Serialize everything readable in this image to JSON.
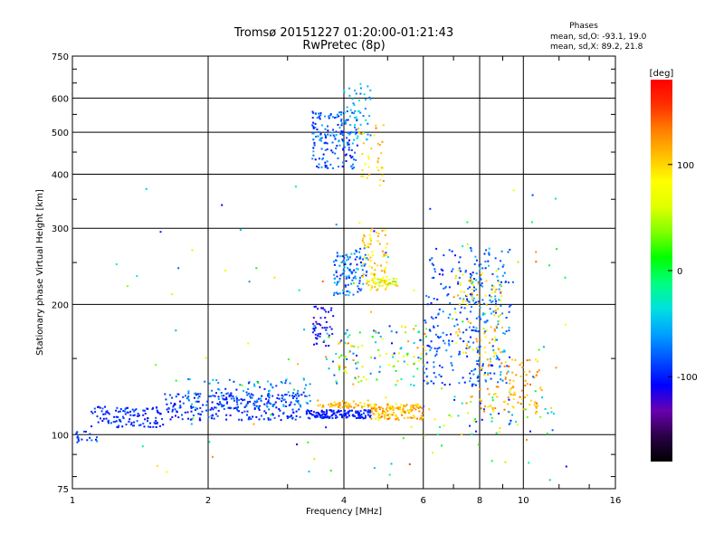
{
  "chart_data": {
    "type": "scatter",
    "title": "Tromsø 20151227 01:20:00-01:21:43",
    "subtitle": "RwPretec (8p)",
    "xlabel": "Frequency [MHz]",
    "ylabel": "Stationary phase Virtual Height [km]",
    "x_scale": "log",
    "y_scale": "log",
    "xlim": [
      1,
      16
    ],
    "ylim": [
      75,
      750
    ],
    "x_ticks": [
      1,
      2,
      4,
      6,
      8,
      10,
      16
    ],
    "y_ticks": [
      75,
      100,
      200,
      300,
      400,
      500,
      600,
      750
    ],
    "x_minor_ticks": [
      3,
      5,
      7,
      9,
      12,
      14
    ],
    "y_minor_ticks": [
      80,
      90,
      150,
      250,
      350,
      450,
      550,
      650,
      700
    ],
    "grid": true,
    "stats": {
      "heading": "Phases",
      "line1": "mean, sd,O: -93.1, 19.0",
      "line2": "mean, sd,X:  89.2, 21.8"
    },
    "colorbar": {
      "unit_label": "[deg]",
      "range": [
        -180,
        180
      ],
      "ticks": [
        100,
        0,
        -100
      ],
      "tick_labels": [
        "100",
        "0",
        "-100"
      ],
      "colors": [
        "#000000",
        "#2a0046",
        "#6a00b0",
        "#0000ff",
        "#0050ff",
        "#00a0ff",
        "#00e0e0",
        "#00ff80",
        "#00ff00",
        "#80ff00",
        "#e0ff00",
        "#ffff00",
        "#ffc000",
        "#ff8000",
        "#ff3000",
        "#ff0000"
      ]
    },
    "clusters": [
      {
        "f": [
          1.0,
          1.15
        ],
        "h": [
          96,
          102
        ],
        "phase": [
          -105,
          -70
        ],
        "n": 20
      },
      {
        "f": [
          1.1,
          1.6
        ],
        "h": [
          104,
          116
        ],
        "phase": [
          -110,
          -80
        ],
        "n": 120
      },
      {
        "f": [
          1.6,
          3.2
        ],
        "h": [
          108,
          125
        ],
        "phase": [
          -115,
          -75
        ],
        "n": 240
      },
      {
        "f": [
          1.8,
          3.4
        ],
        "h": [
          115,
          135
        ],
        "phase": [
          -105,
          -40
        ],
        "n": 110
      },
      {
        "f": [
          3.3,
          4.6
        ],
        "h": [
          109,
          114
        ],
        "phase": [
          -110,
          -90
        ],
        "n": 150
      },
      {
        "f": [
          3.5,
          4.6
        ],
        "h": [
          115,
          120
        ],
        "phase": [
          90,
          130
        ],
        "n": 60
      },
      {
        "f": [
          4.6,
          6.0
        ],
        "h": [
          108,
          118
        ],
        "phase": [
          80,
          140
        ],
        "n": 140
      },
      {
        "f": [
          3.4,
          4.3
        ],
        "h": [
          410,
          560
        ],
        "phase": [
          -110,
          -50
        ],
        "n": 170
      },
      {
        "f": [
          4.0,
          4.6
        ],
        "h": [
          480,
          650
        ],
        "phase": [
          -80,
          -30
        ],
        "n": 45
      },
      {
        "f": [
          4.3,
          4.9
        ],
        "h": [
          380,
          520
        ],
        "phase": [
          80,
          150
        ],
        "n": 35
      },
      {
        "f": [
          3.8,
          4.5
        ],
        "h": [
          210,
          270
        ],
        "phase": [
          -110,
          -40
        ],
        "n": 120
      },
      {
        "f": [
          4.4,
          5.0
        ],
        "h": [
          215,
          300
        ],
        "phase": [
          70,
          130
        ],
        "n": 75
      },
      {
        "f": [
          4.5,
          5.3
        ],
        "h": [
          220,
          230
        ],
        "phase": [
          20,
          110
        ],
        "n": 45
      },
      {
        "f": [
          3.4,
          3.8
        ],
        "h": [
          160,
          200
        ],
        "phase": [
          -130,
          -90
        ],
        "n": 50
      },
      {
        "f": [
          3.6,
          6.2
        ],
        "h": [
          130,
          180
        ],
        "phase": [
          -110,
          140
        ],
        "n": 130
      },
      {
        "f": [
          6.0,
          8.0
        ],
        "h": [
          130,
          270
        ],
        "phase": [
          -110,
          -60
        ],
        "n": 170
      },
      {
        "f": [
          7.6,
          9.4
        ],
        "h": [
          130,
          270
        ],
        "phase": [
          -100,
          -40
        ],
        "n": 160
      },
      {
        "f": [
          7.0,
          9.0
        ],
        "h": [
          150,
          240
        ],
        "phase": [
          70,
          130
        ],
        "n": 90
      },
      {
        "f": [
          8.0,
          11.0
        ],
        "h": [
          112,
          150
        ],
        "phase": [
          90,
          140
        ],
        "n": 100
      },
      {
        "f": [
          6.0,
          12.0
        ],
        "h": [
          100,
          130
        ],
        "phase": [
          -110,
          140
        ],
        "n": 60
      },
      {
        "f": [
          1.2,
          13.0
        ],
        "h": [
          78,
          380
        ],
        "phase": [
          -120,
          150
        ],
        "n": 110
      }
    ]
  }
}
